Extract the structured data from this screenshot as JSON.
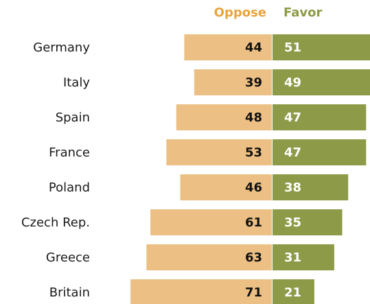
{
  "chart_data": {
    "type": "bar",
    "orientation": "horizontal-diverging",
    "categories": [
      "Germany",
      "Italy",
      "Spain",
      "France",
      "Poland",
      "Czech Rep.",
      "Greece",
      "Britain"
    ],
    "series": [
      {
        "name": "Oppose",
        "color": "#ecc084",
        "label_color": "#e8a33d",
        "values": [
          44,
          39,
          48,
          53,
          46,
          61,
          63,
          71
        ]
      },
      {
        "name": "Favor",
        "color": "#8d9a48",
        "label_color": "#8d9a48",
        "values": [
          51,
          49,
          47,
          47,
          38,
          35,
          31,
          21
        ]
      }
    ],
    "title": "",
    "xlabel": "",
    "ylabel": "",
    "grid": false,
    "legend": "top"
  }
}
